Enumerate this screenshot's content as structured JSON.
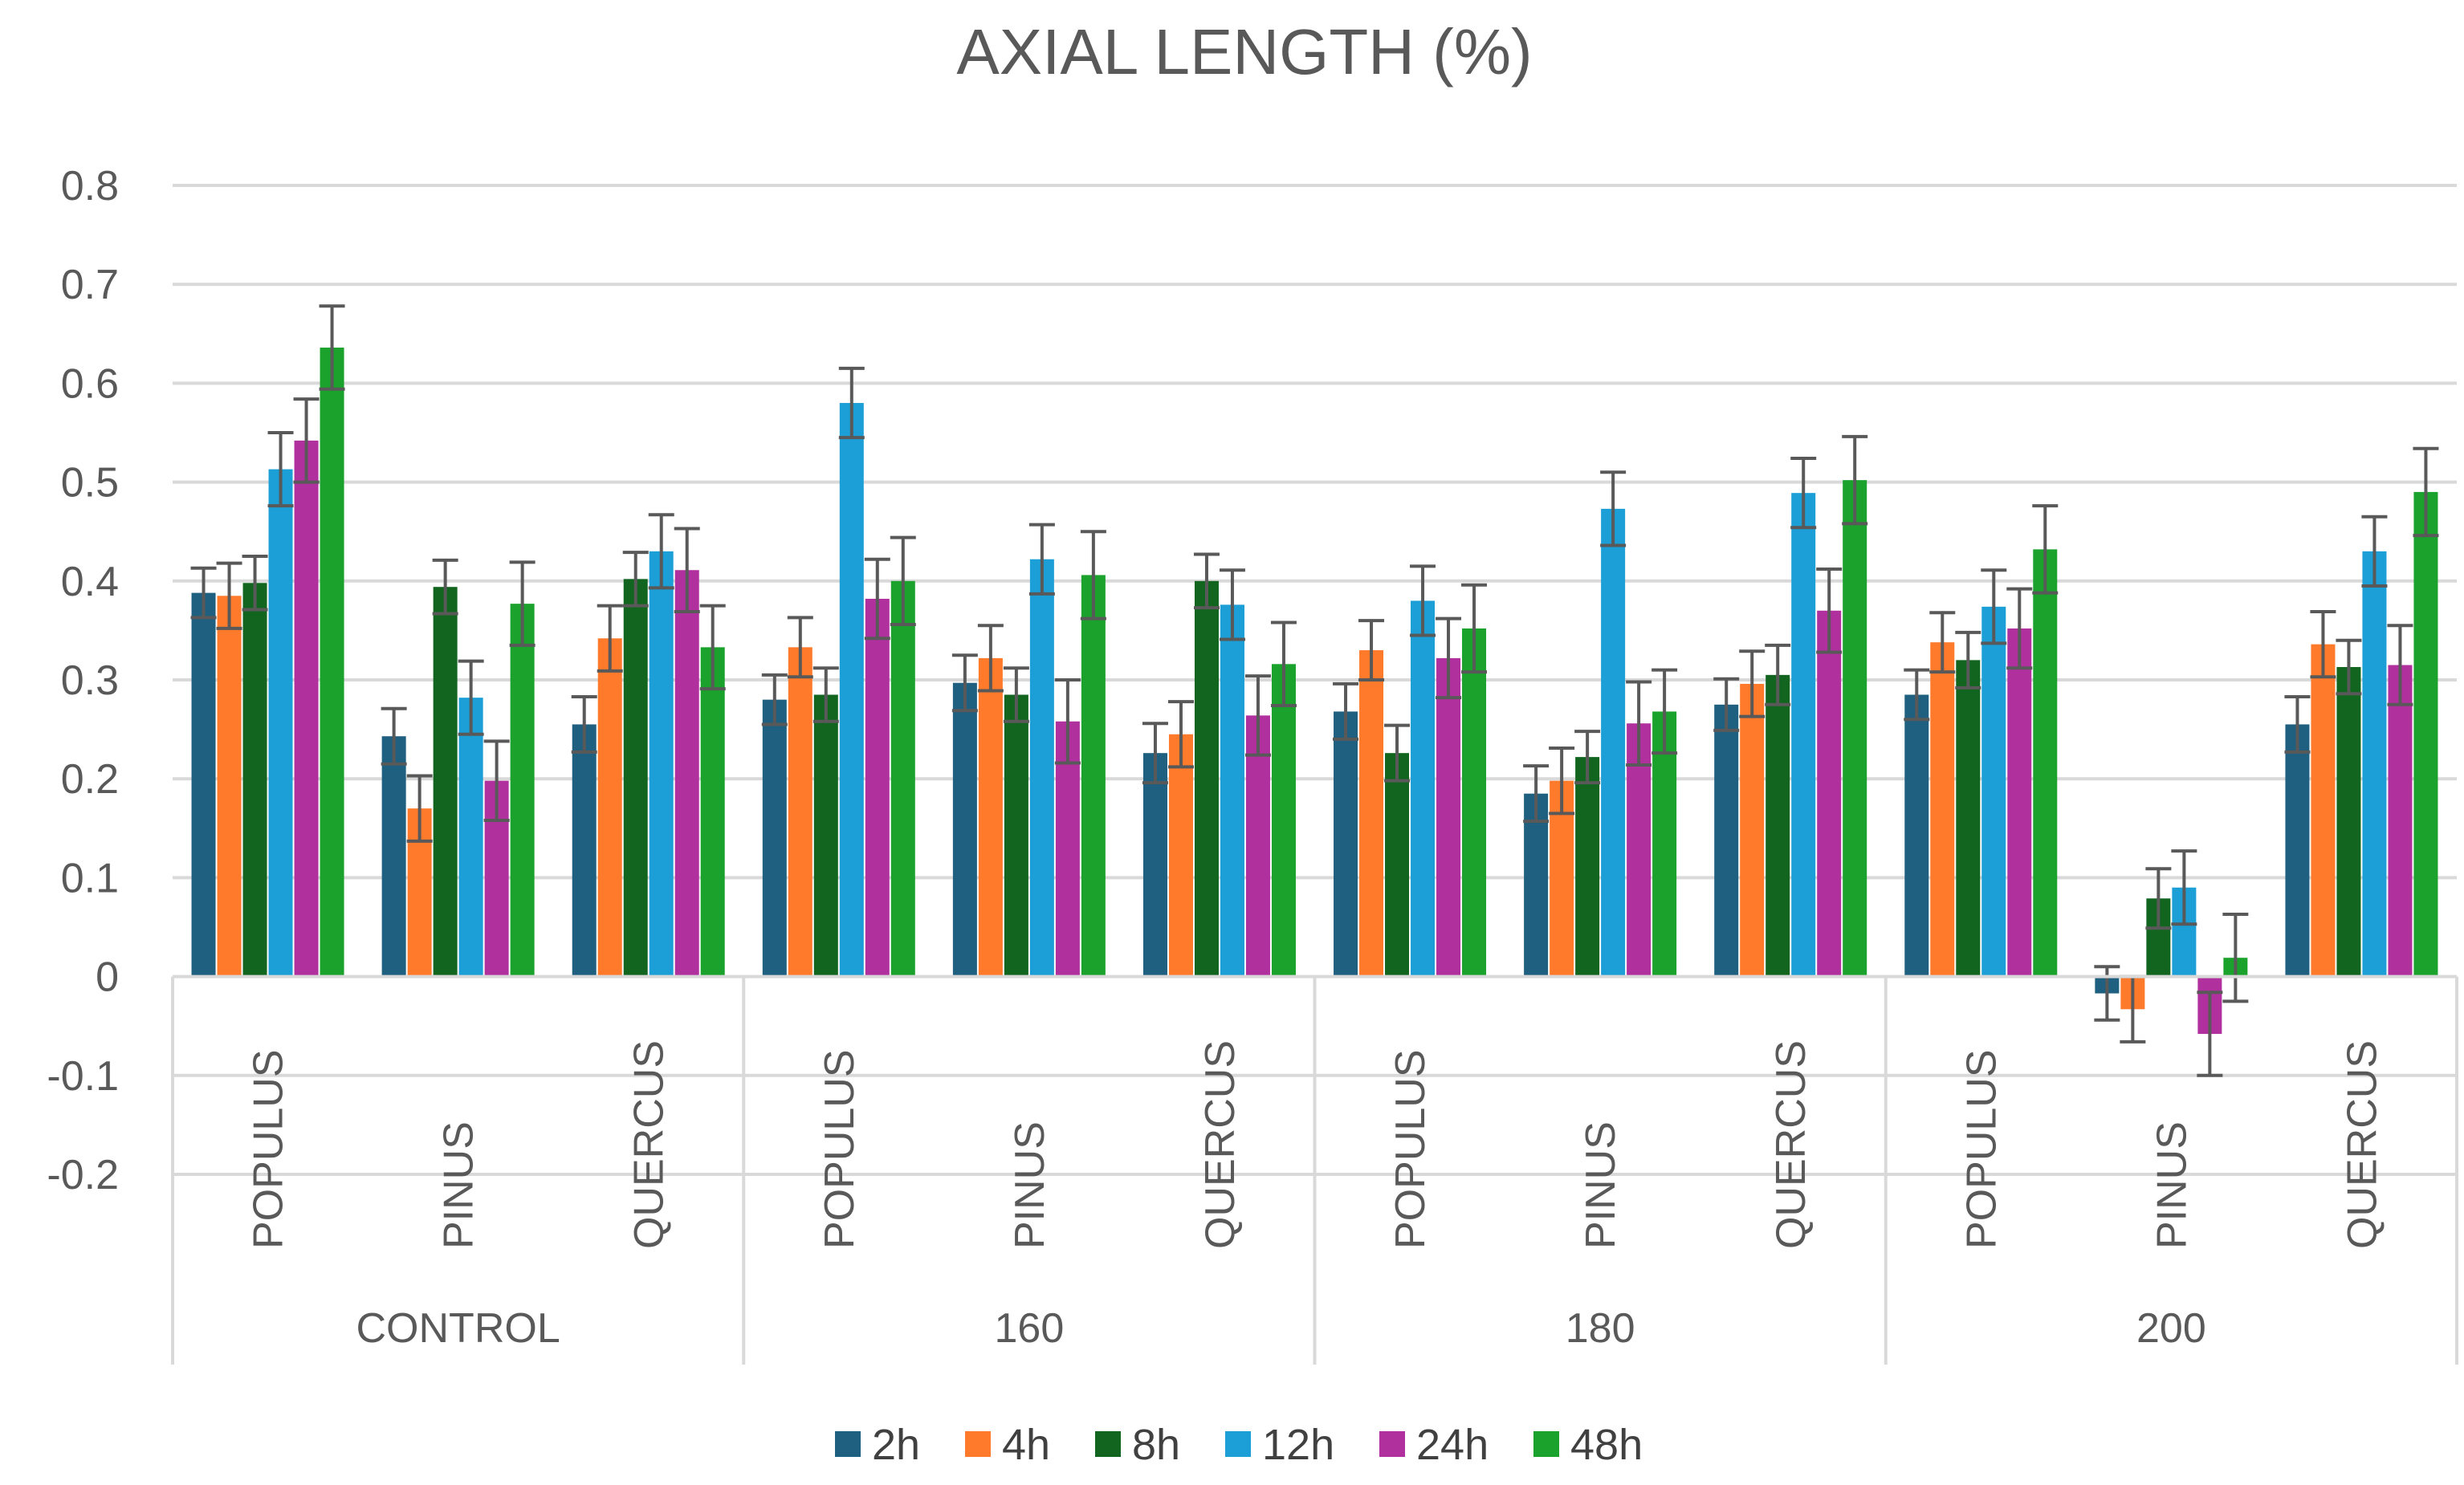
{
  "chart_data": {
    "type": "bar",
    "title": "AXIAL LENGTH (%)",
    "xlabel": "",
    "ylabel": "",
    "ylim": [
      -0.2,
      0.8
    ],
    "yticks": [
      0.8,
      0.7,
      0.6,
      0.5,
      0.4,
      0.3,
      0.2,
      0.1,
      0,
      -0.1,
      -0.2
    ],
    "grid": true,
    "legend_position": "bottom",
    "groups": [
      "CONTROL",
      "160",
      "180",
      "200"
    ],
    "subcategories": [
      "POPULUS",
      "PINUS",
      "QUERCUS"
    ],
    "categories": [
      "CONTROL POPULUS",
      "CONTROL PINUS",
      "CONTROL QUERCUS",
      "160 POPULUS",
      "160 PINUS",
      "160 QUERCUS",
      "180 POPULUS",
      "180 PINUS",
      "180 QUERCUS",
      "200 POPULUS",
      "200 PINUS",
      "200 QUERCUS"
    ],
    "series": [
      {
        "name": "2h",
        "color": "#1F5F7F",
        "values": [
          0.388,
          0.243,
          0.255,
          0.28,
          0.297,
          0.226,
          0.268,
          0.185,
          0.275,
          0.285,
          -0.017,
          0.255
        ],
        "errors": [
          0.025,
          0.028,
          0.028,
          0.025,
          0.028,
          0.03,
          0.028,
          0.028,
          0.026,
          0.025,
          0.027,
          0.028
        ]
      },
      {
        "name": "4h",
        "color": "#FF7A2A",
        "values": [
          0.385,
          0.17,
          0.342,
          0.333,
          0.322,
          0.245,
          0.33,
          0.198,
          0.296,
          0.338,
          -0.033,
          0.336
        ],
        "errors": [
          0.033,
          0.033,
          0.033,
          0.03,
          0.033,
          0.033,
          0.03,
          0.033,
          0.033,
          0.03,
          0.033,
          0.033
        ]
      },
      {
        "name": "8h",
        "color": "#12651F",
        "values": [
          0.398,
          0.394,
          0.402,
          0.285,
          0.285,
          0.4,
          0.226,
          0.222,
          0.305,
          0.32,
          0.079,
          0.313
        ],
        "errors": [
          0.027,
          0.027,
          0.027,
          0.027,
          0.027,
          0.027,
          0.028,
          0.026,
          0.03,
          0.028,
          0.03,
          0.027
        ]
      },
      {
        "name": "12h",
        "color": "#1C9FD6",
        "values": [
          0.513,
          0.282,
          0.43,
          0.58,
          0.422,
          0.376,
          0.38,
          0.473,
          0.489,
          0.374,
          0.09,
          0.43
        ],
        "errors": [
          0.037,
          0.037,
          0.037,
          0.035,
          0.035,
          0.035,
          0.035,
          0.037,
          0.035,
          0.037,
          0.037,
          0.035
        ]
      },
      {
        "name": "24h",
        "color": "#B0309E",
        "values": [
          0.542,
          0.198,
          0.411,
          0.382,
          0.258,
          0.264,
          0.322,
          0.256,
          0.37,
          0.352,
          -0.058,
          0.315
        ],
        "errors": [
          0.042,
          0.04,
          0.042,
          0.04,
          0.042,
          0.04,
          0.04,
          0.042,
          0.042,
          0.04,
          0.042,
          0.04
        ]
      },
      {
        "name": "48h",
        "color": "#1BA22D",
        "values": [
          0.636,
          0.377,
          0.333,
          0.4,
          0.406,
          0.316,
          0.352,
          0.268,
          0.502,
          0.432,
          0.019,
          0.49
        ],
        "errors": [
          0.042,
          0.042,
          0.042,
          0.044,
          0.044,
          0.042,
          0.044,
          0.042,
          0.044,
          0.044,
          0.044,
          0.044
        ]
      }
    ]
  }
}
